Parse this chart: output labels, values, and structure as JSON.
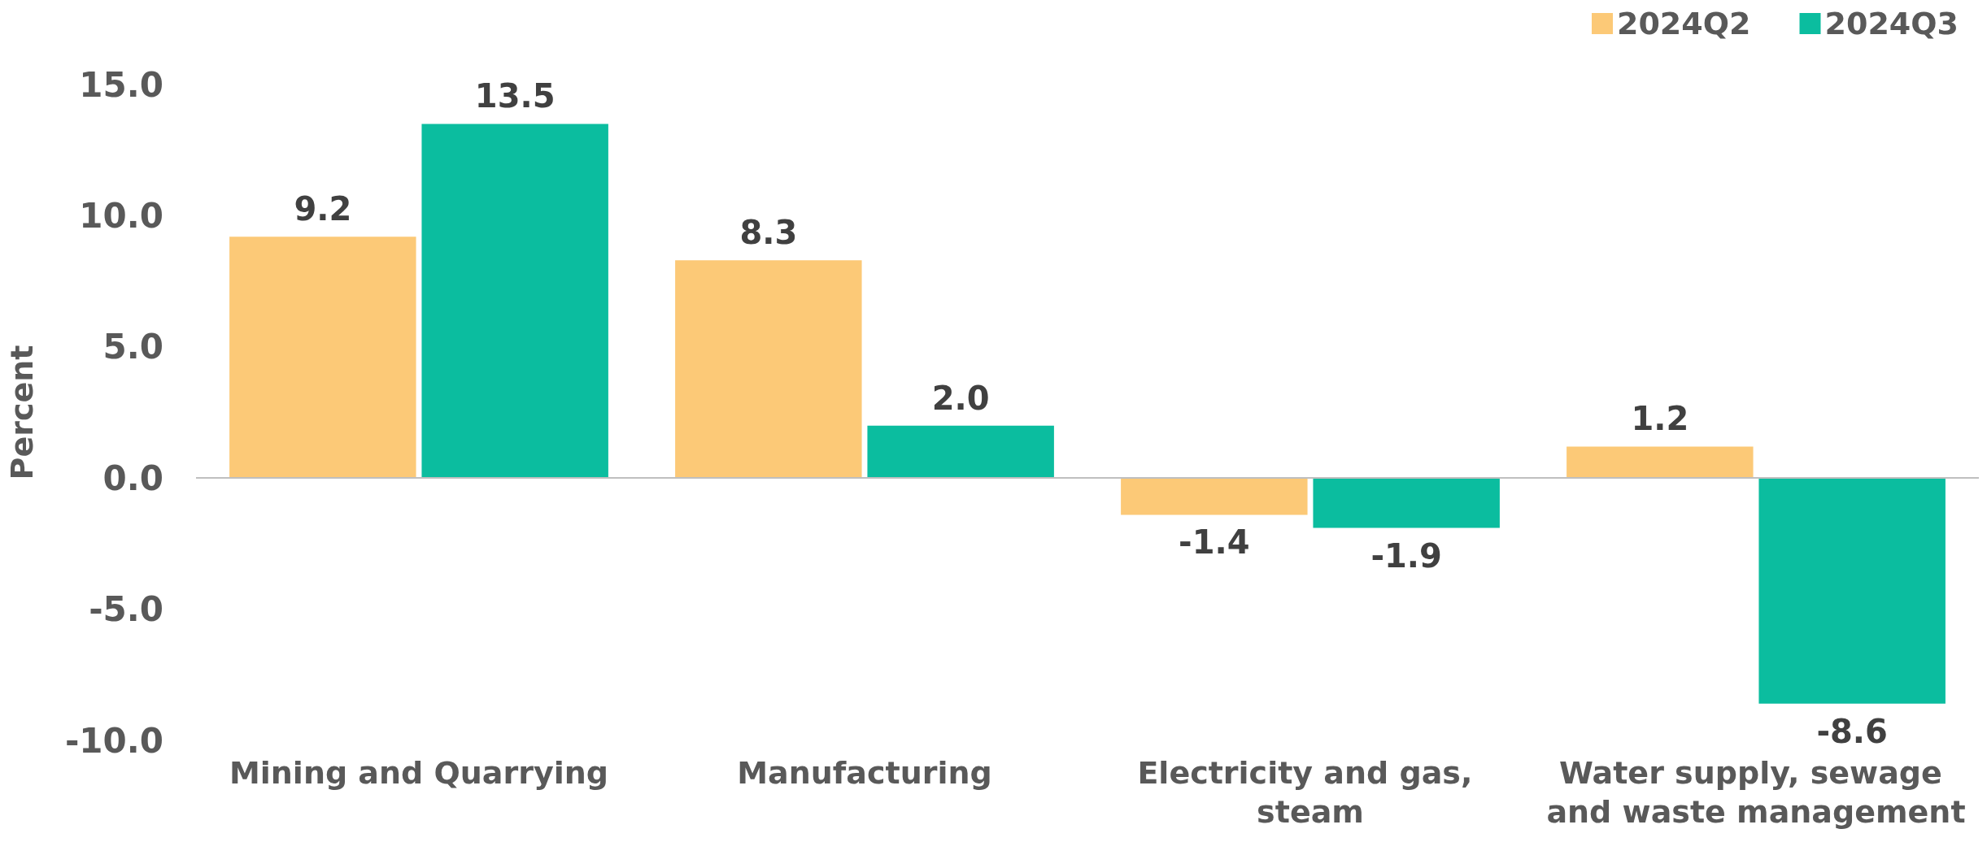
{
  "chart_data": {
    "type": "bar",
    "ylabel": "Percent",
    "categories": [
      "Mining and Quarrying",
      "Manufacturing",
      "Electricity and gas, steam",
      "Water supply, sewage and waste management"
    ],
    "series": [
      {
        "name": "2024Q2",
        "color": "#fcc977",
        "values": [
          9.2,
          8.3,
          -1.4,
          1.2
        ],
        "value_labels": [
          "9.2",
          "8.3",
          "-1.4",
          "1.2"
        ]
      },
      {
        "name": "2024Q3",
        "color": "#0bbd9f",
        "values": [
          13.5,
          2.0,
          -1.9,
          -8.6
        ],
        "value_labels": [
          "13.5",
          "2.0",
          "-1.9",
          "-8.6"
        ]
      }
    ],
    "ylim": [
      -10,
      15
    ],
    "yticks": [
      {
        "value": -10,
        "label": "-10.0"
      },
      {
        "value": -5,
        "label": "-5.0"
      },
      {
        "value": 0,
        "label": "0.0"
      },
      {
        "value": 5,
        "label": "5.0"
      },
      {
        "value": 10,
        "label": "10.0"
      },
      {
        "value": 15,
        "label": "15.0"
      }
    ],
    "ref_lines": [
      {
        "axis": "y",
        "value": 0,
        "color": "#bfbfbf"
      }
    ],
    "legend": "top right"
  }
}
